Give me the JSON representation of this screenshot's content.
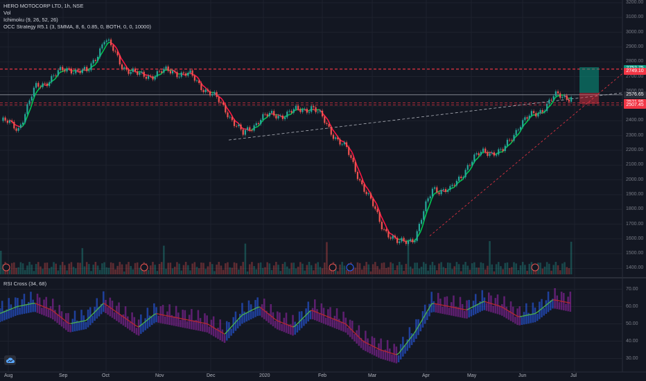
{
  "header": {
    "symbol_line": "HERO MOTOCORP LTD, 1h, NSE",
    "vol_label": "Vol",
    "ichimoku_label": "Ichimoku (9, 26, 52, 26)",
    "strategy_label": "OCC Strategy R5.1 (3, SMMA, 8, 6, 0.85, 0, BOTH, 0, 0, 10000)"
  },
  "rsi_panel": {
    "label": "RSI Cross (34, 68)",
    "ticks": [
      "70.00",
      "60.00",
      "50.00",
      "40.00",
      "30.00"
    ]
  },
  "price_axis": {
    "ticks": [
      "3200.00",
      "3100.00",
      "3000.00",
      "2900.00",
      "2800.00",
      "2700.00",
      "2600.00",
      "2500.00",
      "2400.00",
      "2300.00",
      "2200.00",
      "2100.00",
      "2000.00",
      "1900.00",
      "1800.00",
      "1700.00",
      "1600.00",
      "1500.00",
      "1400.00"
    ]
  },
  "time_axis": {
    "ticks": [
      "Aug",
      "Sep",
      "Oct",
      "Nov",
      "Dec",
      "2020",
      "Feb",
      "Mar",
      "Apr",
      "May",
      "Jun",
      "Jul"
    ]
  },
  "price_tags": [
    {
      "label": "2752.75",
      "color": "#089981"
    },
    {
      "label": "2749.10",
      "color": "#f23645"
    },
    {
      "label": "2576.65",
      "color": "#2a2e39"
    },
    {
      "label": "2521.95",
      "color": "#f23645"
    },
    {
      "label": "2507.45",
      "color": "#f23645"
    }
  ],
  "colors": {
    "background": "#131722",
    "up": "#26a69a",
    "down": "#ef5350",
    "ma_up": "#00c853",
    "ma_down": "#ff1744",
    "rsi_up": "#2962ff",
    "rsi_down": "#9c27b0",
    "level_line": "#f23645",
    "trend_line": "#b2b5be"
  },
  "logo_icon": "tradingview-cloud-icon",
  "chart_data": {
    "type": "line",
    "title": "HERO MOTOCORP LTD, 1h, NSE",
    "xlabel": "",
    "ylabel": "",
    "ylim": [
      1360,
      3200
    ],
    "x_range": [
      "Aug 2019",
      "Jul 2020"
    ],
    "grid": true,
    "series": [
      {
        "name": "",
        "x": [
          "Aug",
          "Aug",
          "Aug",
          "Sep",
          "Sep",
          "Sep",
          "Oct",
          "Oct",
          "Oct",
          "Nov",
          "Nov",
          "Nov",
          "Dec",
          "Dec",
          "Dec",
          "2020",
          "2020",
          "2020",
          "Feb",
          "Feb",
          "Feb",
          "Mar",
          "Mar",
          "Mar",
          "Apr",
          "Apr",
          "Apr",
          "May",
          "May",
          "May",
          "Jun",
          "Jun",
          "Jun",
          "Jul"
        ],
        "values": [
          2400,
          2350,
          2620,
          2700,
          2760,
          2720,
          2960,
          2780,
          2700,
          2720,
          2740,
          2700,
          2600,
          2480,
          2300,
          2420,
          2440,
          2460,
          2500,
          2350,
          2200,
          1950,
          1700,
          1560,
          1620,
          1950,
          1920,
          2100,
          2200,
          2180,
          2380,
          2450,
          2560,
          2570
        ]
      }
    ],
    "levels": [
      2752.75,
      2749.1,
      2576.65,
      2521.95,
      2507.45
    ],
    "rsi": {
      "ylim": [
        25,
        75
      ],
      "values": [
        56,
        60,
        62,
        58,
        50,
        52,
        62,
        55,
        48,
        56,
        54,
        52,
        50,
        44,
        55,
        60,
        52,
        48,
        58,
        54,
        50,
        40,
        35,
        32,
        45,
        62,
        60,
        58,
        63,
        60,
        54,
        56,
        64,
        62
      ]
    }
  }
}
